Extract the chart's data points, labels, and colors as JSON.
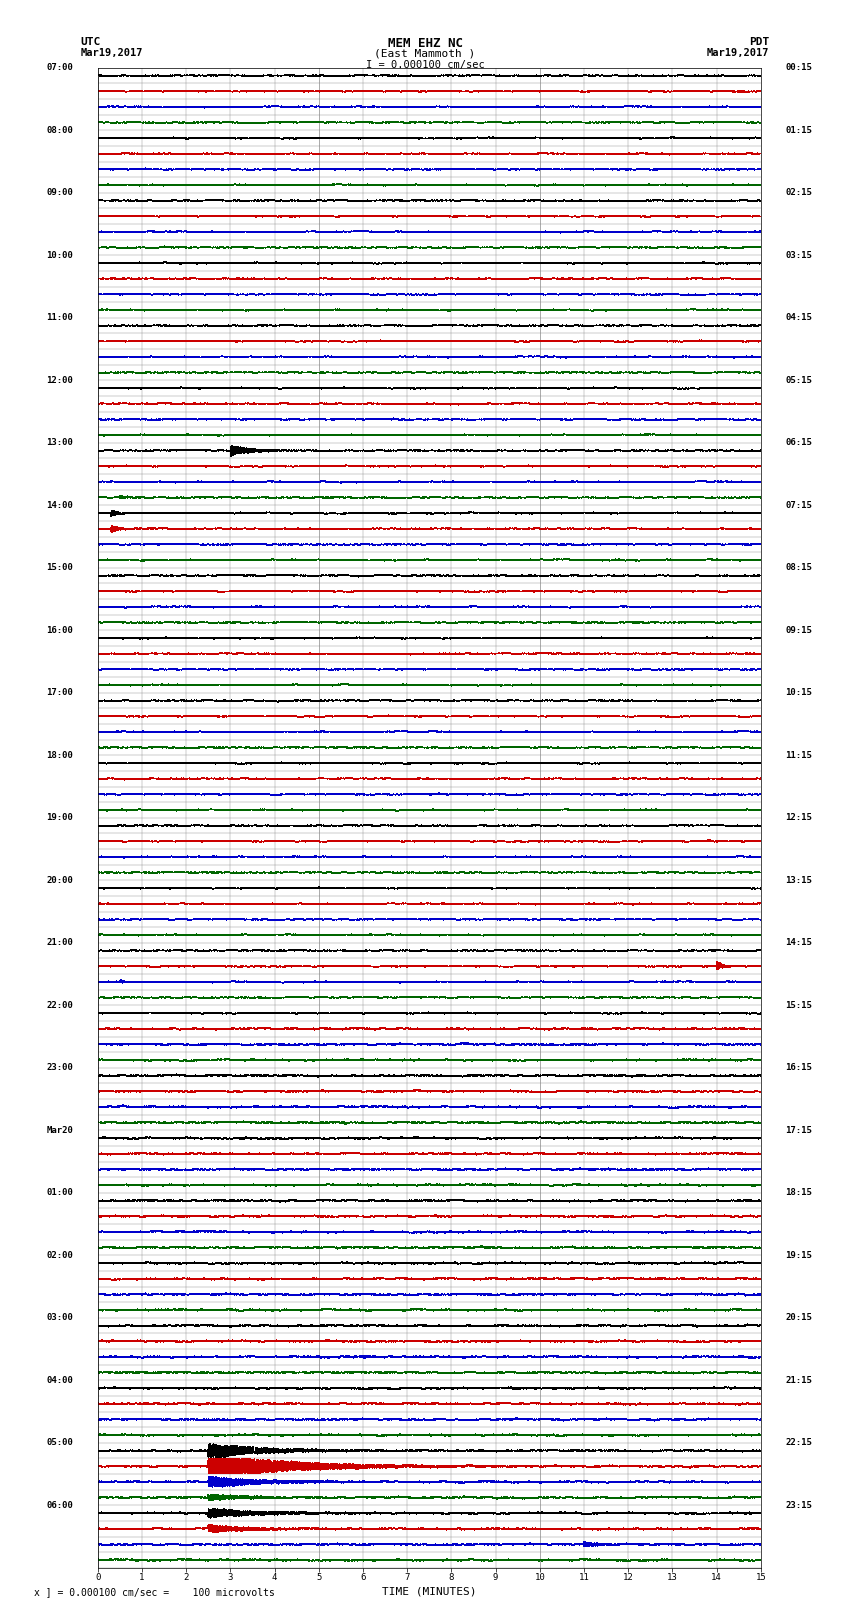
{
  "title_line1": "MEM EHZ NC",
  "title_line2": "(East Mammoth )",
  "title_line3": "I = 0.000100 cm/sec",
  "left_label_top": "UTC",
  "left_label_date": "Mar19,2017",
  "right_label_top": "PDT",
  "right_label_date": "Mar19,2017",
  "xlabel": "TIME (MINUTES)",
  "footer": "x ] = 0.000100 cm/sec =    100 microvolts",
  "bg_color": "#ffffff",
  "trace_colors": [
    "#000000",
    "#cc0000",
    "#0000cc",
    "#006600"
  ],
  "grid_color": "#888888",
  "text_color": "#000000",
  "n_rows": 96,
  "minutes_per_row": 15,
  "noise_amplitude": 0.012,
  "random_seed": 12345,
  "left_labels": [
    "07:00",
    "",
    "",
    "",
    "08:00",
    "",
    "",
    "",
    "09:00",
    "",
    "",
    "",
    "10:00",
    "",
    "",
    "",
    "11:00",
    "",
    "",
    "",
    "12:00",
    "",
    "",
    "",
    "13:00",
    "",
    "",
    "",
    "14:00",
    "",
    "",
    "",
    "15:00",
    "",
    "",
    "",
    "16:00",
    "",
    "",
    "",
    "17:00",
    "",
    "",
    "",
    "18:00",
    "",
    "",
    "",
    "19:00",
    "",
    "",
    "",
    "20:00",
    "",
    "",
    "",
    "21:00",
    "",
    "",
    "",
    "22:00",
    "",
    "",
    "",
    "23:00",
    "",
    "",
    "",
    "Mar20",
    "",
    "",
    "",
    "01:00",
    "",
    "",
    "",
    "02:00",
    "",
    "",
    "",
    "03:00",
    "",
    "",
    "",
    "04:00",
    "",
    "",
    "",
    "05:00",
    "",
    "",
    "",
    "06:00",
    "",
    "",
    ""
  ],
  "right_labels": [
    "00:15",
    "",
    "",
    "",
    "01:15",
    "",
    "",
    "",
    "02:15",
    "",
    "",
    "",
    "03:15",
    "",
    "",
    "",
    "04:15",
    "",
    "",
    "",
    "05:15",
    "",
    "",
    "",
    "06:15",
    "",
    "",
    "",
    "07:15",
    "",
    "",
    "",
    "08:15",
    "",
    "",
    "",
    "09:15",
    "",
    "",
    "",
    "10:15",
    "",
    "",
    "",
    "11:15",
    "",
    "",
    "",
    "12:15",
    "",
    "",
    "",
    "13:15",
    "",
    "",
    "",
    "14:15",
    "",
    "",
    "",
    "15:15",
    "",
    "",
    "",
    "16:15",
    "",
    "",
    "",
    "17:15",
    "",
    "",
    "",
    "18:15",
    "",
    "",
    "",
    "19:15",
    "",
    "",
    "",
    "20:15",
    "",
    "",
    "",
    "21:15",
    "",
    "",
    "",
    "22:15",
    "",
    "",
    "",
    "23:15",
    "",
    "",
    ""
  ]
}
